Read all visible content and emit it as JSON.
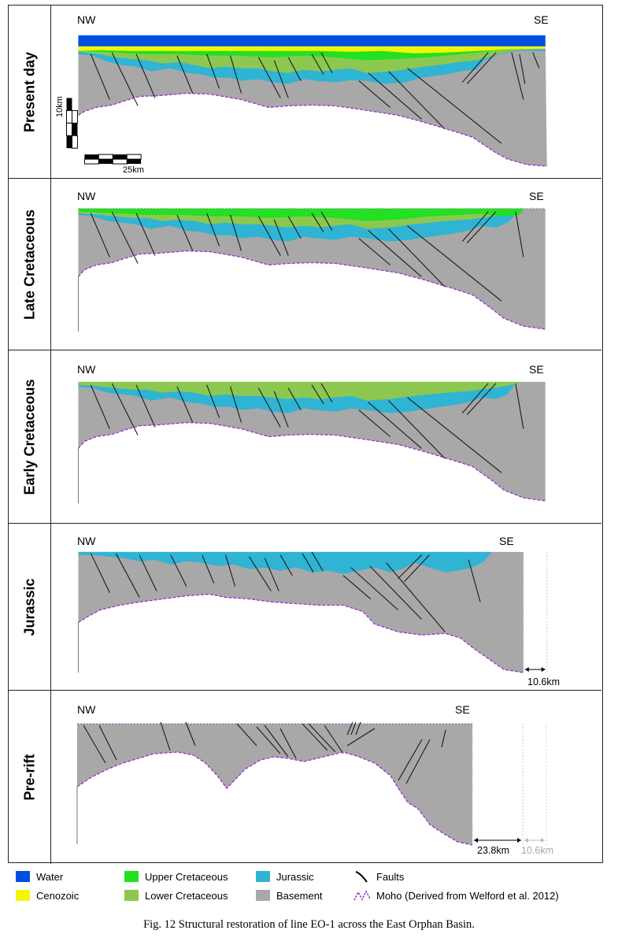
{
  "panels": [
    {
      "id": "present",
      "label": "Present day",
      "nw": "NW",
      "se": "SE"
    },
    {
      "id": "late",
      "label": "Late Cretaceous",
      "nw": "NW",
      "se": "SE"
    },
    {
      "id": "early",
      "label": "Early Cretaceous",
      "nw": "NW",
      "se": "SE"
    },
    {
      "id": "jurassic",
      "label": "Jurassic",
      "nw": "NW",
      "se": "SE"
    },
    {
      "id": "prerift",
      "label": "Pre-rift",
      "nw": "NW",
      "se": "SE"
    }
  ],
  "scale": {
    "vertical": "10km",
    "horizontal": "25km"
  },
  "measurements": {
    "jurassic_extension": "10.6km",
    "prerift_extension": "23.8km",
    "prerift_faint": "10.6km"
  },
  "legend": [
    {
      "label": "Water",
      "color": "#0050e0"
    },
    {
      "label": "Cenozoic",
      "color": "#f5f500"
    },
    {
      "label": "Upper Cretaceous",
      "color": "#22e022"
    },
    {
      "label": "Lower Cretaceous",
      "color": "#8cc850"
    },
    {
      "label": "Jurassic",
      "color": "#30b4d4"
    },
    {
      "label": "Basement",
      "color": "#a8a8a8"
    },
    {
      "label": "Faults",
      "icon": "fault-line-icon"
    },
    {
      "label": "Moho (Derived from Welford et al. 2012)",
      "icon": "moho-dashed-line-icon",
      "color": "#9b30c8"
    }
  ],
  "caption": "Fig. 12 Structural restoration of line EO-1 across the East Orphan Basin."
}
